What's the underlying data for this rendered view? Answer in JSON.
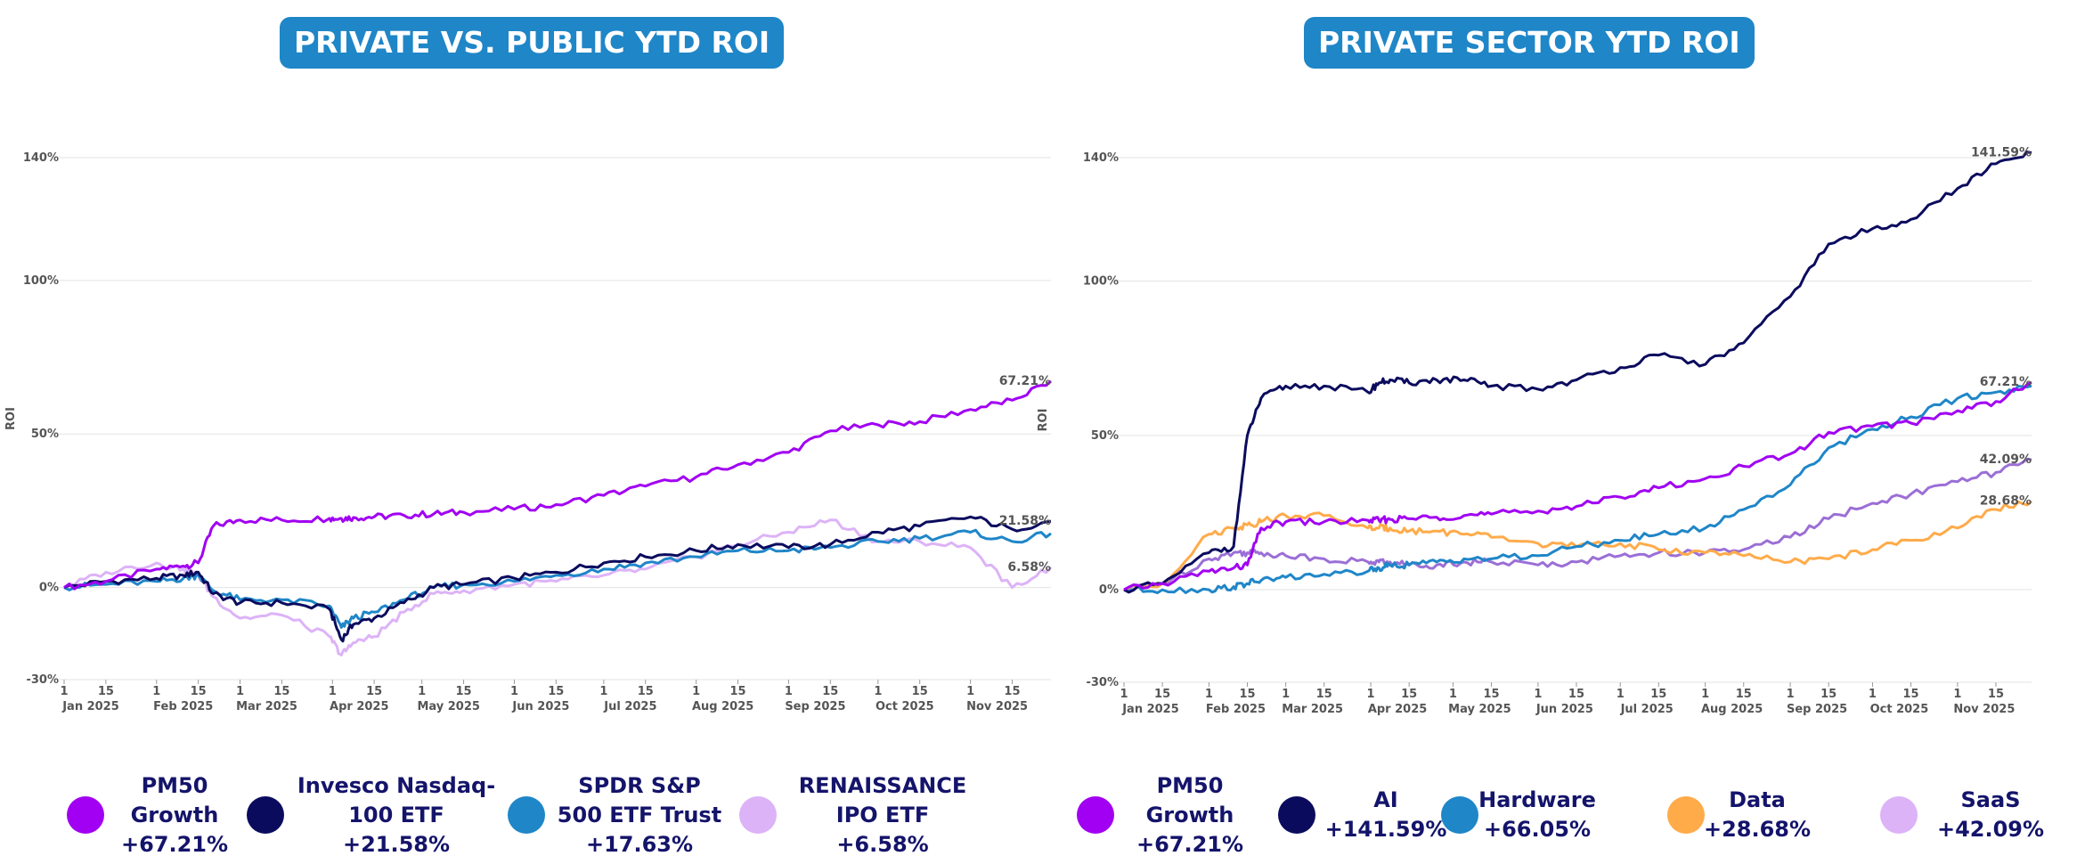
{
  "chart_data": [
    {
      "type": "line",
      "title": "PRIVATE VS. PUBLIC YTD ROI",
      "ylabel": "ROI",
      "xlabel": "",
      "ylim": [
        -30,
        140
      ],
      "yticks": [
        "-30%",
        "0%",
        "50%",
        "100%",
        "140%"
      ],
      "xticks_day": [
        "1",
        "15",
        "1",
        "15",
        "1",
        "15",
        "1",
        "15",
        "1",
        "15",
        "1",
        "15",
        "1",
        "15",
        "1",
        "15",
        "1",
        "15",
        "1",
        "15",
        "1",
        "15"
      ],
      "xticks_month": [
        "Jan 2025",
        "Feb 2025",
        "Mar 2025",
        "Apr 2025",
        "May 2025",
        "Jun 2025",
        "Jul 2025",
        "Aug 2025",
        "Sep 2025",
        "Oct 2025",
        "Nov 2025"
      ],
      "grid": true,
      "legend_position": "bottom",
      "x_dates": [
        "2025-01-01",
        "2025-01-15",
        "2025-02-01",
        "2025-02-10",
        "2025-02-15",
        "2025-02-20",
        "2025-03-01",
        "2025-03-15",
        "2025-03-31",
        "2025-04-04",
        "2025-04-08",
        "2025-04-15",
        "2025-04-25",
        "2025-05-05",
        "2025-05-15",
        "2025-06-01",
        "2025-06-15",
        "2025-07-01",
        "2025-07-15",
        "2025-08-01",
        "2025-08-15",
        "2025-09-01",
        "2025-09-15",
        "2025-10-01",
        "2025-10-15",
        "2025-11-01",
        "2025-11-15",
        "2025-11-28"
      ],
      "series": [
        {
          "name": "PM50 Growth",
          "color": "#a100f2",
          "end_label": "67.21%",
          "values": [
            0,
            2,
            6,
            7,
            8,
            20,
            22,
            22,
            22.5,
            22.5,
            22.8,
            23,
            23.5,
            24,
            24.5,
            25.5,
            27,
            30,
            33,
            36,
            40,
            44,
            51,
            53,
            54,
            58,
            61,
            67.2
          ]
        },
        {
          "name": "Invesco Nasdaq-100 ETF",
          "color": "#0b0b5e",
          "end_label": "21.58%",
          "values": [
            0,
            2,
            3,
            4,
            5,
            -2,
            -5,
            -5,
            -7,
            -17,
            -12,
            -10,
            -5,
            0,
            1,
            3,
            5,
            8,
            10,
            12,
            14,
            13,
            14,
            18,
            20,
            23,
            19,
            21.6
          ]
        },
        {
          "name": "SPDR S&P 500 ETF Trust",
          "color": "#1f86c8",
          "end_label": "",
          "values": [
            0,
            1,
            2,
            3,
            4,
            -1,
            -4,
            -4,
            -6,
            -13,
            -10,
            -8,
            -4,
            0,
            1,
            2,
            4,
            6,
            8,
            10,
            12,
            12,
            13,
            15,
            16,
            18,
            15,
            17.6
          ]
        },
        {
          "name": "RENAISSANCE IPO ETF",
          "color": "#ddb3f7",
          "end_label": "6.58%",
          "values": [
            0,
            5,
            8,
            6,
            4,
            -3,
            -10,
            -9,
            -16,
            -22,
            -18,
            -16,
            -8,
            -2,
            -1,
            1,
            2,
            4,
            6,
            10,
            14,
            18,
            22,
            15,
            15,
            13,
            0,
            6.6
          ]
        }
      ]
    },
    {
      "type": "line",
      "title": "PRIVATE SECTOR YTD ROI",
      "ylabel": "ROI",
      "xlabel": "",
      "ylim": [
        -30,
        140
      ],
      "yticks": [
        "-30%",
        "0%",
        "50%",
        "100%",
        "140%"
      ],
      "xticks_day": [
        "1",
        "15",
        "1",
        "15",
        "1",
        "15",
        "1",
        "15",
        "1",
        "15",
        "1",
        "15",
        "1",
        "15",
        "1",
        "15",
        "1",
        "15",
        "1",
        "15",
        "1",
        "15"
      ],
      "xticks_month": [
        "Jan 2025",
        "Feb 2025",
        "Mar 2025",
        "Apr 2025",
        "May 2025",
        "Jun 2025",
        "Jul 2025",
        "Aug 2025",
        "Sep 2025",
        "Oct 2025",
        "Nov 2025"
      ],
      "grid": true,
      "legend_position": "bottom",
      "x_dates": [
        "2025-01-01",
        "2025-01-15",
        "2025-02-01",
        "2025-02-10",
        "2025-02-15",
        "2025-02-20",
        "2025-03-01",
        "2025-03-15",
        "2025-03-31",
        "2025-04-04",
        "2025-04-08",
        "2025-04-15",
        "2025-04-25",
        "2025-05-05",
        "2025-05-15",
        "2025-06-01",
        "2025-06-15",
        "2025-07-01",
        "2025-07-15",
        "2025-08-01",
        "2025-08-15",
        "2025-09-01",
        "2025-09-15",
        "2025-10-01",
        "2025-10-15",
        "2025-11-01",
        "2025-11-15",
        "2025-11-28"
      ],
      "series": [
        {
          "name": "PM50 Growth",
          "color": "#a100f2",
          "end_label": "67.21%",
          "values": [
            0,
            2,
            6,
            7,
            8,
            20,
            22,
            22,
            22.5,
            22.5,
            22.8,
            23,
            23.5,
            24,
            24.5,
            25.5,
            27,
            30,
            33,
            36,
            40,
            44,
            51,
            53,
            54,
            58,
            61,
            67.2
          ]
        },
        {
          "name": "AI",
          "color": "#0b0b5e",
          "end_label": "141.59%",
          "values": [
            0,
            2,
            12,
            14,
            50,
            62,
            66,
            66,
            64,
            67,
            68,
            67,
            68,
            68,
            66,
            65,
            68,
            72,
            76,
            73,
            80,
            95,
            112,
            117,
            120,
            130,
            138,
            141.6
          ]
        },
        {
          "name": "Hardware",
          "color": "#1f86c8",
          "end_label": "",
          "values": [
            0,
            0,
            0,
            1,
            2,
            3,
            4,
            5,
            6,
            7,
            8,
            8,
            9,
            10,
            10,
            11,
            14,
            16,
            18,
            20,
            26,
            34,
            46,
            52,
            56,
            62,
            64,
            66.05
          ]
        },
        {
          "name": "Data",
          "color": "#ffab4a",
          "end_label": "28.68%",
          "values": [
            0,
            2,
            18,
            20,
            21,
            22,
            24,
            24,
            20,
            20,
            20,
            19,
            19,
            18,
            17,
            15,
            14,
            15,
            13,
            12,
            11,
            9,
            10,
            13,
            16,
            20,
            26,
            28.68
          ]
        },
        {
          "name": "SaaS",
          "color": "#9b6fd6",
          "end_label": "42.09%",
          "values": [
            0,
            2,
            10,
            12,
            12,
            12,
            11,
            10,
            9,
            9,
            9,
            8,
            8,
            9,
            9,
            8,
            9,
            11,
            12,
            12,
            13,
            17,
            23,
            28,
            31,
            35,
            38,
            42.09
          ]
        }
      ]
    }
  ],
  "legends": [
    {
      "items": [
        {
          "lines": [
            "PM50",
            "Growth",
            "+67.21%"
          ],
          "color": "#a100f2"
        },
        {
          "lines": [
            "Invesco Nasdaq-",
            "100 ETF",
            "+21.58%"
          ],
          "color": "#0b0b5e"
        },
        {
          "lines": [
            "SPDR S&P",
            "500 ETF Trust",
            "+17.63%"
          ],
          "color": "#1f86c8"
        },
        {
          "lines": [
            "RENAISSANCE",
            "IPO ETF",
            "+6.58%"
          ],
          "color": "#ddb3f7"
        }
      ]
    },
    {
      "items": [
        {
          "lines": [
            "PM50",
            "Growth",
            "+67.21%"
          ],
          "color": "#a100f2"
        },
        {
          "lines": [
            "AI",
            "+141.59%"
          ],
          "color": "#0b0b5e"
        },
        {
          "lines": [
            "Hardware",
            "+66.05%"
          ],
          "color": "#1f86c8"
        },
        {
          "lines": [
            "Data",
            "+28.68%"
          ],
          "color": "#ffab4a"
        },
        {
          "lines": [
            "SaaS",
            "+42.09%"
          ],
          "color": "#ddb3f7"
        }
      ]
    }
  ]
}
